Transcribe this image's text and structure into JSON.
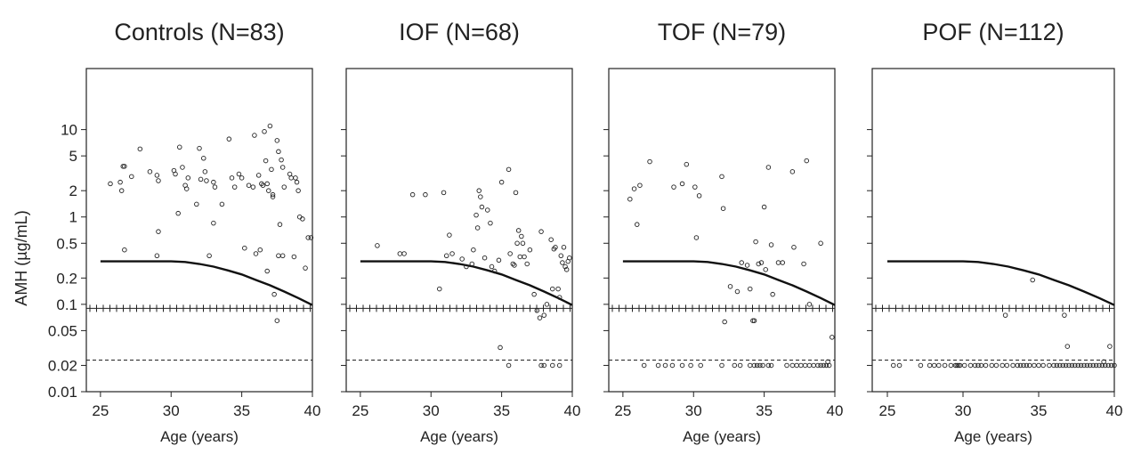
{
  "chart_data": {
    "type": "scatter",
    "ylabel": "AMH (µg/mL)",
    "xlabel": "Age (years)",
    "xlim": [
      24,
      40
    ],
    "x_ticks": [
      25,
      30,
      35,
      40
    ],
    "x_tick_labels": [
      "25",
      "30",
      "35",
      "40"
    ],
    "y_scale": "log",
    "ylim": [
      0.01,
      50
    ],
    "y_ticks": [
      0.01,
      0.02,
      0.05,
      0.1,
      0.2,
      0.5,
      1,
      2,
      5,
      10
    ],
    "y_tick_labels": [
      "0.01",
      "0.02",
      "0.05",
      "0.1",
      "0.2",
      "0.5",
      "1",
      "2",
      "5",
      "10"
    ],
    "reference_lines": {
      "plus_line": 0.09,
      "dashed_line": 0.023
    },
    "threshold_curve": {
      "x": [
        25,
        30,
        31,
        32,
        33,
        34,
        35,
        36,
        37,
        38,
        39,
        40
      ],
      "y": [
        0.31,
        0.31,
        0.305,
        0.29,
        0.27,
        0.245,
        0.22,
        0.19,
        0.165,
        0.14,
        0.118,
        0.098
      ]
    },
    "panels": [
      {
        "title": "Controls (N=83)",
        "points": [
          [
            25.7,
            2.4
          ],
          [
            26.4,
            2.5
          ],
          [
            26.5,
            2.0
          ],
          [
            26.6,
            3.8
          ],
          [
            26.7,
            3.8
          ],
          [
            27.2,
            2.9
          ],
          [
            27.8,
            6.0
          ],
          [
            28.5,
            3.3
          ],
          [
            29.0,
            3.0
          ],
          [
            29.1,
            2.6
          ],
          [
            30.2,
            3.4
          ],
          [
            30.3,
            3.1
          ],
          [
            30.5,
            1.1
          ],
          [
            30.6,
            6.3
          ],
          [
            30.8,
            3.7
          ],
          [
            31.0,
            2.3
          ],
          [
            31.1,
            2.1
          ],
          [
            31.2,
            2.8
          ],
          [
            31.8,
            1.4
          ],
          [
            32.0,
            6.1
          ],
          [
            32.1,
            2.7
          ],
          [
            32.3,
            4.7
          ],
          [
            32.4,
            3.3
          ],
          [
            32.5,
            2.6
          ],
          [
            33.0,
            2.5
          ],
          [
            33.1,
            2.2
          ],
          [
            33.6,
            1.4
          ],
          [
            34.1,
            7.8
          ],
          [
            34.3,
            2.8
          ],
          [
            34.5,
            2.2
          ],
          [
            34.8,
            3.1
          ],
          [
            35.0,
            2.8
          ],
          [
            35.5,
            2.3
          ],
          [
            35.8,
            2.2
          ],
          [
            35.9,
            8.6
          ],
          [
            36.2,
            3.0
          ],
          [
            36.4,
            2.4
          ],
          [
            36.5,
            2.3
          ],
          [
            36.6,
            9.5
          ],
          [
            36.7,
            4.4
          ],
          [
            36.8,
            2.4
          ],
          [
            36.9,
            2.0
          ],
          [
            37.0,
            11.0
          ],
          [
            37.1,
            3.5
          ],
          [
            37.2,
            1.7
          ],
          [
            37.5,
            7.5
          ],
          [
            37.6,
            5.6
          ],
          [
            37.8,
            4.5
          ],
          [
            37.9,
            3.7
          ],
          [
            38.0,
            2.2
          ],
          [
            38.4,
            3.1
          ],
          [
            38.5,
            2.8
          ],
          [
            38.8,
            2.8
          ],
          [
            38.9,
            2.5
          ],
          [
            39.0,
            2.0
          ],
          [
            39.1,
            1.0
          ],
          [
            39.3,
            0.95
          ],
          [
            26.7,
            0.42
          ],
          [
            29.0,
            0.36
          ],
          [
            32.7,
            0.36
          ],
          [
            33.0,
            0.85
          ],
          [
            35.2,
            0.44
          ],
          [
            36.0,
            0.38
          ],
          [
            36.3,
            0.42
          ],
          [
            36.8,
            0.24
          ],
          [
            37.3,
            0.13
          ],
          [
            37.6,
            0.36
          ],
          [
            37.9,
            0.36
          ],
          [
            37.5,
            0.065
          ],
          [
            38.7,
            0.35
          ],
          [
            39.5,
            0.26
          ],
          [
            39.7,
            0.58
          ],
          [
            39.9,
            0.58
          ],
          [
            29.1,
            0.68
          ],
          [
            37.7,
            0.82
          ],
          [
            37.2,
            1.8
          ]
        ]
      },
      {
        "title": "IOF (N=68)",
        "points": [
          [
            26.2,
            0.47
          ],
          [
            27.8,
            0.38
          ],
          [
            28.1,
            0.38
          ],
          [
            28.7,
            1.8
          ],
          [
            29.6,
            1.8
          ],
          [
            30.6,
            0.15
          ],
          [
            30.9,
            1.9
          ],
          [
            31.1,
            0.36
          ],
          [
            31.3,
            0.62
          ],
          [
            31.5,
            0.38
          ],
          [
            32.2,
            0.33
          ],
          [
            32.5,
            0.27
          ],
          [
            32.9,
            0.29
          ],
          [
            33.0,
            0.42
          ],
          [
            33.2,
            1.05
          ],
          [
            33.3,
            0.75
          ],
          [
            33.4,
            2.0
          ],
          [
            33.5,
            1.7
          ],
          [
            33.6,
            1.3
          ],
          [
            33.8,
            0.34
          ],
          [
            34.0,
            1.2
          ],
          [
            34.2,
            0.85
          ],
          [
            34.3,
            0.27
          ],
          [
            34.5,
            0.24
          ],
          [
            34.8,
            0.32
          ],
          [
            35.0,
            2.5
          ],
          [
            35.5,
            3.5
          ],
          [
            35.6,
            0.38
          ],
          [
            35.8,
            0.29
          ],
          [
            35.9,
            0.28
          ],
          [
            36.0,
            1.9
          ],
          [
            36.1,
            0.5
          ],
          [
            36.2,
            0.7
          ],
          [
            36.3,
            0.35
          ],
          [
            36.4,
            0.6
          ],
          [
            36.5,
            0.5
          ],
          [
            36.6,
            0.35
          ],
          [
            36.8,
            0.29
          ],
          [
            37.0,
            0.42
          ],
          [
            37.3,
            0.13
          ],
          [
            37.5,
            0.085
          ],
          [
            37.7,
            0.07
          ],
          [
            37.8,
            0.68
          ],
          [
            38.0,
            0.075
          ],
          [
            38.2,
            0.1
          ],
          [
            38.5,
            0.55
          ],
          [
            38.6,
            0.15
          ],
          [
            38.7,
            0.43
          ],
          [
            38.8,
            0.45
          ],
          [
            39.0,
            0.15
          ],
          [
            39.1,
            0.12
          ],
          [
            39.2,
            0.36
          ],
          [
            39.3,
            0.3
          ],
          [
            39.4,
            0.45
          ],
          [
            39.5,
            0.27
          ],
          [
            39.6,
            0.25
          ],
          [
            39.7,
            0.31
          ],
          [
            39.8,
            0.34
          ],
          [
            34.9,
            0.032
          ],
          [
            35.5,
            0.02
          ],
          [
            37.8,
            0.02
          ],
          [
            38.0,
            0.02
          ],
          [
            38.6,
            0.02
          ],
          [
            39.1,
            0.02
          ]
        ]
      },
      {
        "title": "TOF (N=79)",
        "points": [
          [
            25.5,
            1.6
          ],
          [
            25.8,
            2.1
          ],
          [
            26.0,
            0.82
          ],
          [
            26.2,
            2.3
          ],
          [
            26.9,
            4.3
          ],
          [
            28.6,
            2.2
          ],
          [
            29.2,
            2.4
          ],
          [
            29.5,
            4.0
          ],
          [
            30.1,
            2.2
          ],
          [
            30.2,
            0.58
          ],
          [
            30.4,
            1.75
          ],
          [
            32.0,
            2.9
          ],
          [
            32.1,
            1.25
          ],
          [
            32.6,
            0.16
          ],
          [
            33.1,
            0.14
          ],
          [
            33.4,
            0.3
          ],
          [
            33.8,
            0.28
          ],
          [
            34.0,
            0.15
          ],
          [
            34.2,
            0.065
          ],
          [
            34.4,
            0.52
          ],
          [
            34.6,
            0.29
          ],
          [
            34.8,
            0.3
          ],
          [
            35.0,
            1.3
          ],
          [
            35.1,
            0.25
          ],
          [
            35.3,
            3.7
          ],
          [
            35.5,
            0.48
          ],
          [
            35.6,
            0.13
          ],
          [
            36.0,
            0.3
          ],
          [
            36.3,
            0.3
          ],
          [
            37.0,
            3.3
          ],
          [
            37.1,
            0.45
          ],
          [
            37.8,
            0.29
          ],
          [
            38.0,
            4.4
          ],
          [
            38.2,
            0.1
          ],
          [
            39.0,
            0.5
          ],
          [
            39.8,
            0.042
          ],
          [
            32.2,
            0.063
          ],
          [
            34.3,
            0.065
          ],
          [
            26.5,
            0.02
          ],
          [
            27.5,
            0.02
          ],
          [
            28.0,
            0.02
          ],
          [
            28.5,
            0.02
          ],
          [
            29.2,
            0.02
          ],
          [
            29.8,
            0.02
          ],
          [
            30.5,
            0.02
          ],
          [
            32.0,
            0.02
          ],
          [
            32.9,
            0.02
          ],
          [
            33.3,
            0.02
          ],
          [
            34.0,
            0.02
          ],
          [
            34.3,
            0.02
          ],
          [
            34.5,
            0.02
          ],
          [
            34.7,
            0.02
          ],
          [
            34.9,
            0.02
          ],
          [
            35.3,
            0.02
          ],
          [
            35.5,
            0.02
          ],
          [
            36.6,
            0.02
          ],
          [
            37.0,
            0.02
          ],
          [
            37.3,
            0.02
          ],
          [
            37.6,
            0.02
          ],
          [
            37.9,
            0.02
          ],
          [
            38.2,
            0.02
          ],
          [
            38.5,
            0.02
          ],
          [
            38.8,
            0.02
          ],
          [
            39.0,
            0.02
          ],
          [
            39.2,
            0.02
          ],
          [
            39.4,
            0.02
          ],
          [
            39.6,
            0.02
          ],
          [
            39.5,
            0.022
          ]
        ]
      },
      {
        "title": "POF (N=112)",
        "points": [
          [
            34.6,
            0.19
          ],
          [
            32.8,
            0.075
          ],
          [
            36.7,
            0.075
          ],
          [
            36.9,
            0.033
          ],
          [
            39.7,
            0.033
          ],
          [
            39.3,
            0.022
          ],
          [
            25.4,
            0.02
          ],
          [
            25.8,
            0.02
          ],
          [
            27.2,
            0.02
          ],
          [
            27.8,
            0.02
          ],
          [
            28.1,
            0.02
          ],
          [
            28.4,
            0.02
          ],
          [
            28.8,
            0.02
          ],
          [
            29.2,
            0.02
          ],
          [
            29.5,
            0.02
          ],
          [
            29.6,
            0.02
          ],
          [
            29.7,
            0.02
          ],
          [
            29.8,
            0.02
          ],
          [
            30.1,
            0.02
          ],
          [
            30.5,
            0.02
          ],
          [
            30.8,
            0.02
          ],
          [
            31.0,
            0.02
          ],
          [
            31.2,
            0.02
          ],
          [
            31.5,
            0.02
          ],
          [
            31.9,
            0.02
          ],
          [
            32.2,
            0.02
          ],
          [
            32.6,
            0.02
          ],
          [
            32.9,
            0.02
          ],
          [
            33.3,
            0.02
          ],
          [
            33.6,
            0.02
          ],
          [
            33.8,
            0.02
          ],
          [
            34.0,
            0.02
          ],
          [
            34.2,
            0.02
          ],
          [
            34.4,
            0.02
          ],
          [
            34.7,
            0.02
          ],
          [
            35.0,
            0.02
          ],
          [
            35.3,
            0.02
          ],
          [
            35.7,
            0.02
          ],
          [
            36.0,
            0.02
          ],
          [
            36.2,
            0.02
          ],
          [
            36.4,
            0.02
          ],
          [
            36.6,
            0.02
          ],
          [
            36.8,
            0.02
          ],
          [
            37.0,
            0.02
          ],
          [
            37.2,
            0.02
          ],
          [
            37.4,
            0.02
          ],
          [
            37.6,
            0.02
          ],
          [
            37.8,
            0.02
          ],
          [
            38.0,
            0.02
          ],
          [
            38.2,
            0.02
          ],
          [
            38.4,
            0.02
          ],
          [
            38.6,
            0.02
          ],
          [
            38.8,
            0.02
          ],
          [
            39.0,
            0.02
          ],
          [
            39.2,
            0.02
          ],
          [
            39.4,
            0.02
          ],
          [
            39.6,
            0.02
          ],
          [
            39.8,
            0.02
          ],
          [
            40.0,
            0.02
          ]
        ]
      }
    ]
  }
}
